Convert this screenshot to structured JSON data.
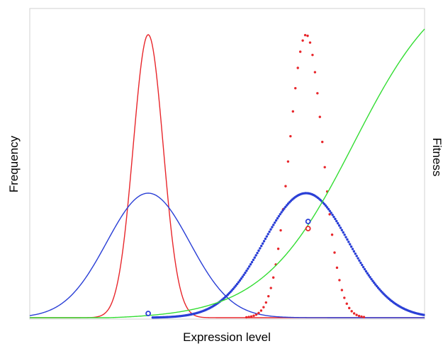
{
  "chart_data": {
    "type": "line",
    "xlabel": "Expression level",
    "ylabel": "Frequency",
    "y2label": "Fitness",
    "grid": false,
    "legend": "none",
    "x_range": [
      0,
      10
    ],
    "y_range": [
      0,
      1
    ],
    "y2_range": [
      0,
      1
    ],
    "series": [
      {
        "style": "solid",
        "color": "#e8262b",
        "axis": "left",
        "shape": "gaussian",
        "mean": 3.0,
        "sd": 0.38,
        "peak": 1.0,
        "x": [
          1.8,
          2.2,
          2.6,
          2.8,
          3.0,
          3.2,
          3.4,
          3.8,
          4.2
        ],
        "y": [
          0.007,
          0.12,
          0.58,
          0.87,
          1.0,
          0.87,
          0.58,
          0.12,
          0.007
        ]
      },
      {
        "style": "solid",
        "color": "#2a3fd6",
        "axis": "left",
        "shape": "gaussian",
        "mean": 3.0,
        "sd": 1.05,
        "peak": 0.44,
        "x": [
          0.0,
          1.0,
          2.0,
          3.0,
          4.0,
          5.0,
          6.0
        ],
        "y": [
          0.007,
          0.07,
          0.28,
          0.44,
          0.28,
          0.07,
          0.007
        ]
      },
      {
        "style": "dotted",
        "color": "#e8262b",
        "axis": "left",
        "shape": "gaussian",
        "mean": 7.0,
        "sd": 0.42,
        "peak": 1.0,
        "x": [
          5.8,
          6.2,
          6.6,
          6.8,
          7.0,
          7.2,
          7.4,
          7.8,
          8.2
        ],
        "y": [
          0.017,
          0.16,
          0.64,
          0.89,
          1.0,
          0.89,
          0.64,
          0.16,
          0.017
        ]
      },
      {
        "style": "dotted",
        "color": "#2a3fd6",
        "axis": "left",
        "shape": "gaussian",
        "mean": 7.0,
        "sd": 1.08,
        "peak": 0.44,
        "x": [
          4.0,
          5.0,
          6.0,
          7.0,
          8.0,
          9.0,
          10.0
        ],
        "y": [
          0.01,
          0.08,
          0.29,
          0.44,
          0.29,
          0.08,
          0.01
        ]
      },
      {
        "style": "solid",
        "color": "#33dd33",
        "axis": "right",
        "shape": "logistic",
        "midpoint": 8.2,
        "scale": 1.15,
        "ceiling": 1.22,
        "x": [
          2.0,
          4.0,
          6.0,
          7.0,
          8.0,
          9.0,
          10.0
        ],
        "y": [
          0.0,
          0.03,
          0.14,
          0.28,
          0.55,
          0.78,
          1.0
        ]
      }
    ],
    "markers": [
      {
        "x": 3.0,
        "y": 0.015,
        "color": "#2a3fd6",
        "style": "open-circle"
      },
      {
        "x": 7.05,
        "y": 0.34,
        "color": "#2a3fd6",
        "style": "open-circle"
      },
      {
        "x": 7.05,
        "y": 0.315,
        "color": "#e8262b",
        "style": "open-circle"
      }
    ]
  }
}
